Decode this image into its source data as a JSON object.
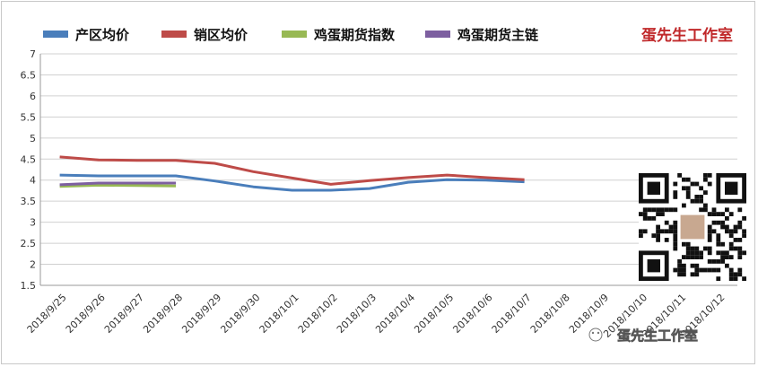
{
  "brand_label": "蛋先生工作室",
  "watermark": "蛋先生工作室",
  "chart_data": {
    "type": "line",
    "categories": [
      "2018/9/25",
      "2018/9/26",
      "2018/9/27",
      "2018/9/28",
      "2018/9/29",
      "2018/9/30",
      "2018/10/1",
      "2018/10/2",
      "2018/10/3",
      "2018/10/4",
      "2018/10/5",
      "2018/10/6",
      "2018/10/7",
      "2018/10/8",
      "2018/10/9",
      "2018/10/10",
      "2018/10/11",
      "2018/10/12"
    ],
    "ylim": [
      1.5,
      7
    ],
    "yticks": [
      "1.5",
      "2",
      "2.5",
      "3",
      "3.5",
      "4",
      "4.5",
      "5",
      "5.5",
      "6",
      "6.5",
      "7"
    ],
    "grid": true,
    "legend_position": "top-left",
    "series": [
      {
        "name": "产区均价",
        "color": "#4a7ebb",
        "values": [
          4.12,
          4.1,
          4.1,
          4.1,
          3.98,
          3.84,
          3.76,
          3.76,
          3.8,
          3.95,
          4.01,
          4.0,
          3.96,
          null,
          null,
          null,
          null,
          null
        ]
      },
      {
        "name": "销区均价",
        "color": "#be4b48",
        "values": [
          4.55,
          4.48,
          4.47,
          4.47,
          4.4,
          4.2,
          4.05,
          3.9,
          3.99,
          4.06,
          4.12,
          4.06,
          4.01,
          null,
          null,
          null,
          null,
          null
        ]
      },
      {
        "name": "鸡蛋期货指数",
        "color": "#98b954",
        "values": [
          3.85,
          3.88,
          3.87,
          3.86,
          null,
          null,
          null,
          null,
          null,
          null,
          null,
          null,
          null,
          null,
          null,
          null,
          null,
          null
        ]
      },
      {
        "name": "鸡蛋期货主链",
        "color": "#7d5fa0",
        "values": [
          3.89,
          3.93,
          3.93,
          3.93,
          null,
          null,
          null,
          null,
          null,
          null,
          null,
          null,
          null,
          null,
          null,
          null,
          null,
          null
        ]
      }
    ]
  }
}
